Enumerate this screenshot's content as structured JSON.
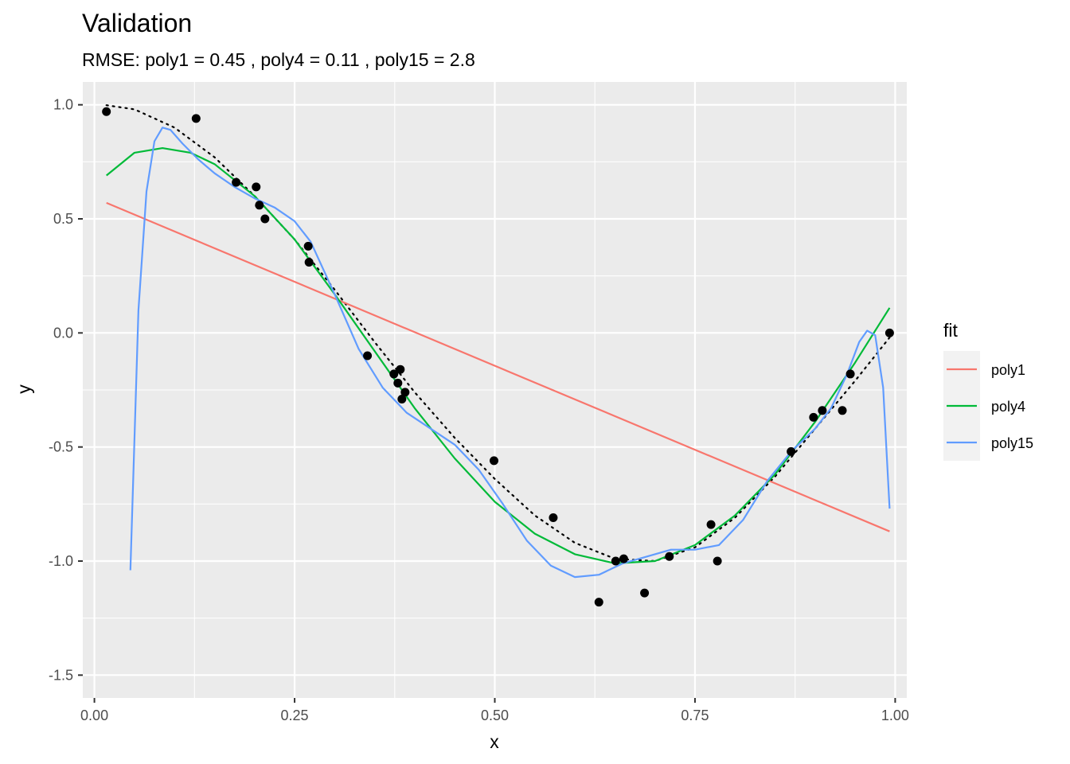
{
  "chart_data": {
    "type": "scatter",
    "title": "Validation",
    "subtitle": "RMSE: poly1 = 0.45 , poly4 = 0.11 , poly15 = 2.8",
    "xlabel": "x",
    "ylabel": "y",
    "xlim": [
      -0.0145,
      1.0145
    ],
    "ylim": [
      -1.6,
      1.1
    ],
    "x_ticks": [
      0.0,
      0.25,
      0.5,
      0.75,
      1.0
    ],
    "x_tick_labels": [
      "0.00",
      "0.25",
      "0.50",
      "0.75",
      "1.00"
    ],
    "y_ticks": [
      1.0,
      0.5,
      0.0,
      -0.5,
      -1.0,
      -1.5
    ],
    "y_tick_labels": [
      "1.0",
      "0.5",
      "0.0",
      "-0.5",
      "-1.0",
      "-1.5"
    ],
    "grid": true,
    "legend_title": "fit",
    "legend_position": "right",
    "points": {
      "x": [
        0.015,
        0.127,
        0.177,
        0.202,
        0.206,
        0.213,
        0.267,
        0.268,
        0.341,
        0.374,
        0.379,
        0.382,
        0.384,
        0.388,
        0.499,
        0.573,
        0.63,
        0.651,
        0.661,
        0.687,
        0.718,
        0.77,
        0.778,
        0.87,
        0.898,
        0.909,
        0.934,
        0.944,
        0.993
      ],
      "y": [
        0.97,
        0.94,
        0.66,
        0.64,
        0.56,
        0.5,
        0.38,
        0.31,
        -0.1,
        -0.18,
        -0.22,
        -0.16,
        -0.29,
        -0.26,
        -0.56,
        -0.81,
        -1.18,
        -1.0,
        -0.99,
        -1.14,
        -0.98,
        -0.84,
        -1.0,
        -0.52,
        -0.37,
        -0.34,
        -0.34,
        -0.18,
        0.0
      ]
    },
    "true_curve": {
      "x": [
        0.015,
        0.05,
        0.1,
        0.15,
        0.2,
        0.25,
        0.3,
        0.35,
        0.4,
        0.45,
        0.5,
        0.55,
        0.6,
        0.65,
        0.7,
        0.75,
        0.8,
        0.85,
        0.9,
        0.95,
        0.993
      ],
      "y": [
        0.998,
        0.98,
        0.9,
        0.77,
        0.6,
        0.41,
        0.19,
        -0.04,
        -0.26,
        -0.46,
        -0.64,
        -0.8,
        -0.92,
        -0.99,
        -1.0,
        -0.94,
        -0.81,
        -0.63,
        -0.42,
        -0.21,
        -0.02
      ]
    },
    "series": [
      {
        "name": "poly1",
        "color": "#F8766D",
        "x": [
          0.015,
          0.993
        ],
        "y": [
          0.57,
          -0.87
        ]
      },
      {
        "name": "poly4",
        "color": "#00BA38",
        "x": [
          0.015,
          0.05,
          0.085,
          0.12,
          0.15,
          0.2,
          0.25,
          0.3,
          0.35,
          0.4,
          0.45,
          0.5,
          0.55,
          0.6,
          0.65,
          0.7,
          0.75,
          0.8,
          0.85,
          0.9,
          0.95,
          0.993
        ],
        "y": [
          0.69,
          0.79,
          0.81,
          0.79,
          0.74,
          0.6,
          0.41,
          0.17,
          -0.08,
          -0.33,
          -0.55,
          -0.74,
          -0.88,
          -0.97,
          -1.01,
          -1.0,
          -0.93,
          -0.8,
          -0.62,
          -0.39,
          -0.13,
          0.11
        ]
      },
      {
        "name": "poly15",
        "color": "#619CFF",
        "x": [
          0.045,
          0.055,
          0.065,
          0.075,
          0.085,
          0.095,
          0.11,
          0.13,
          0.15,
          0.175,
          0.2,
          0.225,
          0.25,
          0.27,
          0.3,
          0.33,
          0.36,
          0.39,
          0.42,
          0.45,
          0.48,
          0.51,
          0.54,
          0.57,
          0.6,
          0.63,
          0.66,
          0.69,
          0.72,
          0.75,
          0.78,
          0.81,
          0.84,
          0.87,
          0.9,
          0.92,
          0.94,
          0.955,
          0.965,
          0.975,
          0.985,
          0.993
        ],
        "y": [
          -1.04,
          0.1,
          0.62,
          0.84,
          0.9,
          0.89,
          0.83,
          0.76,
          0.7,
          0.64,
          0.59,
          0.55,
          0.49,
          0.4,
          0.17,
          -0.07,
          -0.24,
          -0.35,
          -0.42,
          -0.49,
          -0.6,
          -0.75,
          -0.91,
          -1.02,
          -1.07,
          -1.06,
          -1.01,
          -0.98,
          -0.95,
          -0.95,
          -0.93,
          -0.82,
          -0.65,
          -0.52,
          -0.42,
          -0.33,
          -0.18,
          -0.04,
          0.01,
          -0.01,
          -0.24,
          -0.77
        ]
      }
    ]
  }
}
